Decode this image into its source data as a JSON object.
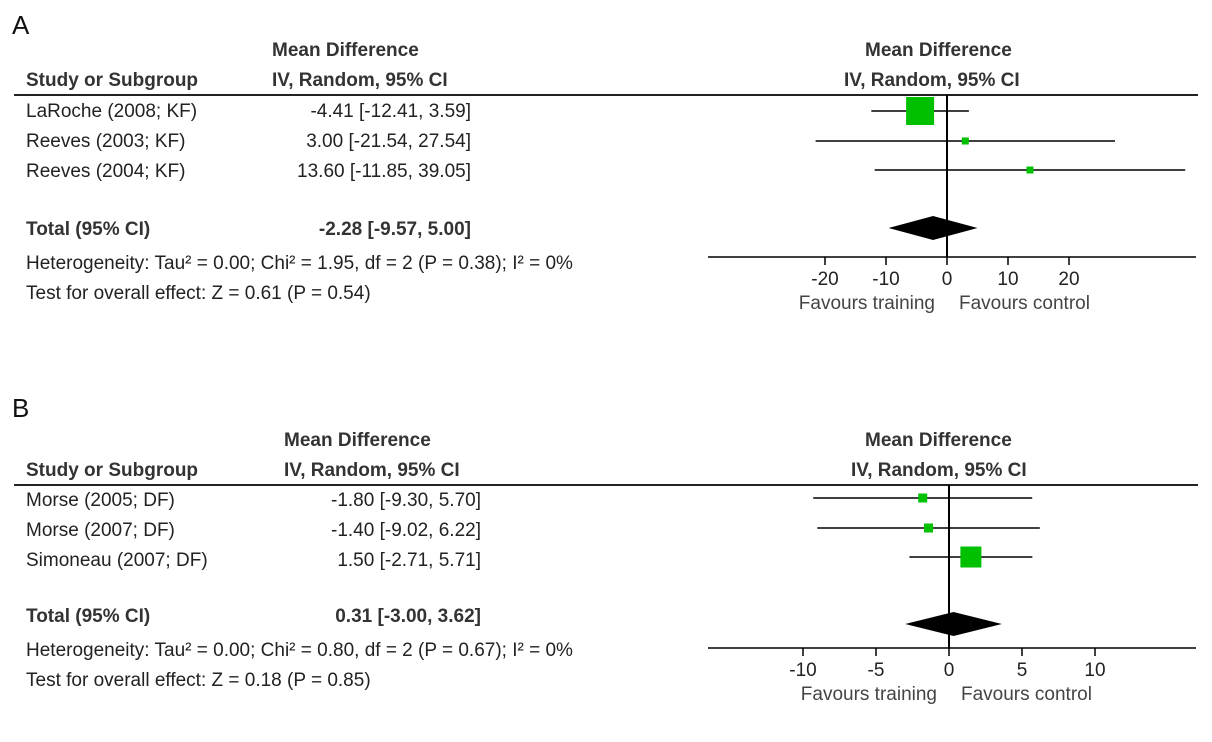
{
  "chart_data": [
    {
      "type": "forest",
      "panel_label": "A",
      "columns": {
        "study_header": "Study or Subgroup",
        "md_header_line1": "Mean Difference",
        "md_header_line2": "IV, Random, 95% CI",
        "plot_header_line1": "Mean Difference",
        "plot_header_line2": "IV, Random, 95% CI"
      },
      "studies": [
        {
          "name": "LaRoche (2008; KF)",
          "ci_text": "-4.41 [-12.41, 3.59]",
          "md": -4.41,
          "lower": -12.41,
          "upper": 3.59,
          "weight_size": 28
        },
        {
          "name": "Reeves (2003; KF)",
          "ci_text": "3.00 [-21.54, 27.54]",
          "md": 3.0,
          "lower": -21.54,
          "upper": 27.54,
          "weight_size": 7
        },
        {
          "name": "Reeves (2004; KF)",
          "ci_text": "13.60 [-11.85, 39.05]",
          "md": 13.6,
          "lower": -11.85,
          "upper": 39.05,
          "weight_size": 7
        }
      ],
      "total": {
        "name": "Total (95% CI)",
        "ci_text": "-2.28 [-9.57, 5.00]",
        "md": -2.28,
        "lower": -9.57,
        "upper": 5.0
      },
      "heterogeneity": "Heterogeneity: Tau² = 0.00; Chi² = 1.95, df = 2 (P = 0.38); I² = 0%",
      "overall_effect": "Test for overall effect: Z = 0.61 (P = 0.54)",
      "x_ticks": [
        -20,
        -10,
        0,
        10,
        20
      ],
      "x_tick_labels": [
        "-20",
        "-10",
        "0",
        "10",
        "20"
      ],
      "xlim": [
        -50,
        50
      ],
      "favours_left": "Favours training",
      "favours_right": "Favours control",
      "colors": {
        "study_marker": "#00c000",
        "diamond": "#000000",
        "lines": "#000000"
      }
    },
    {
      "type": "forest",
      "panel_label": "B",
      "columns": {
        "study_header": "Study or Subgroup",
        "md_header_line1": "Mean Difference",
        "md_header_line2": "IV, Random, 95% CI",
        "plot_header_line1": "Mean Difference",
        "plot_header_line2": "IV, Random, 95% CI"
      },
      "studies": [
        {
          "name": "Morse (2005; DF)",
          "ci_text": "-1.80 [-9.30, 5.70]",
          "md": -1.8,
          "lower": -9.3,
          "upper": 5.7,
          "weight_size": 9
        },
        {
          "name": "Morse (2007; DF)",
          "ci_text": "-1.40 [-9.02, 6.22]",
          "md": -1.4,
          "lower": -9.02,
          "upper": 6.22,
          "weight_size": 9
        },
        {
          "name": "Simoneau (2007; DF)",
          "ci_text": "1.50 [-2.71, 5.71]",
          "md": 1.5,
          "lower": -2.71,
          "upper": 5.71,
          "weight_size": 21
        }
      ],
      "total": {
        "name": "Total (95% CI)",
        "ci_text": "0.31 [-3.00, 3.62]",
        "md": 0.31,
        "lower": -3.0,
        "upper": 3.62
      },
      "heterogeneity": "Heterogeneity: Tau² = 0.00; Chi² = 0.80, df = 2 (P = 0.67); I² = 0%",
      "overall_effect": "Test for overall effect: Z = 0.18 (P = 0.85)",
      "x_ticks": [
        -10,
        -5,
        0,
        5,
        10
      ],
      "x_tick_labels": [
        "-10",
        "-5",
        "0",
        "5",
        "10"
      ],
      "xlim": [
        -17,
        17
      ],
      "favours_left": "Favours training",
      "favours_right": "Favours control",
      "colors": {
        "study_marker": "#00c000",
        "diamond": "#000000",
        "lines": "#000000"
      }
    }
  ]
}
